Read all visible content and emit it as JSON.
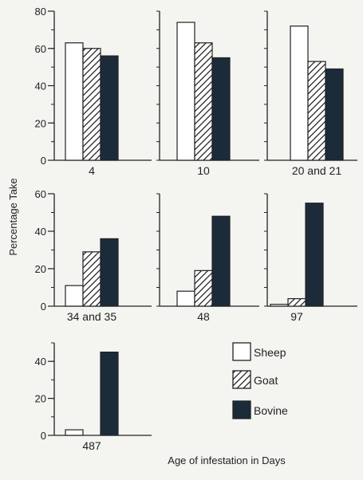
{
  "chart_data": {
    "type": "bar",
    "ylabel": "Percentage Take",
    "xlabel": "Age of infestation in Days",
    "series_names": [
      "Sheep",
      "Goat",
      "Bovine"
    ],
    "series_fill": [
      "white",
      "hatch",
      "dark"
    ],
    "colors": {
      "dark": "#1c2b3a",
      "outline": "#222222",
      "background": "#f4f4f1"
    },
    "legend": {
      "placement": "bottom-right",
      "items": [
        {
          "label": "Sheep",
          "fill": "white"
        },
        {
          "label": "Goat",
          "fill": "hatch"
        },
        {
          "label": "Bovine",
          "fill": "dark"
        }
      ]
    },
    "panels": [
      {
        "category": "4",
        "values": [
          63,
          60,
          56
        ],
        "ylim": [
          0,
          80
        ],
        "yticks": [
          "0",
          "20",
          "40",
          "60",
          "80"
        ]
      },
      {
        "category": "10",
        "values": [
          74,
          63,
          55
        ],
        "ylim": [
          0,
          80
        ],
        "yticks": []
      },
      {
        "category": "20 and 21",
        "values": [
          72,
          53,
          49
        ],
        "ylim": [
          0,
          80
        ],
        "yticks": []
      },
      {
        "category": "34 and 35",
        "values": [
          11,
          29,
          36
        ],
        "ylim": [
          0,
          60
        ],
        "yticks": [
          "0",
          "20",
          "40",
          "60"
        ]
      },
      {
        "category": "48",
        "values": [
          8,
          19,
          48
        ],
        "ylim": [
          0,
          60
        ],
        "yticks": []
      },
      {
        "category": "97",
        "values": [
          1,
          4,
          55
        ],
        "ylim": [
          0,
          60
        ],
        "yticks": []
      },
      {
        "category": "487",
        "values": [
          3,
          0,
          45
        ],
        "ylim": [
          0,
          50
        ],
        "yticks": [
          "0",
          "20",
          "40"
        ]
      }
    ]
  }
}
